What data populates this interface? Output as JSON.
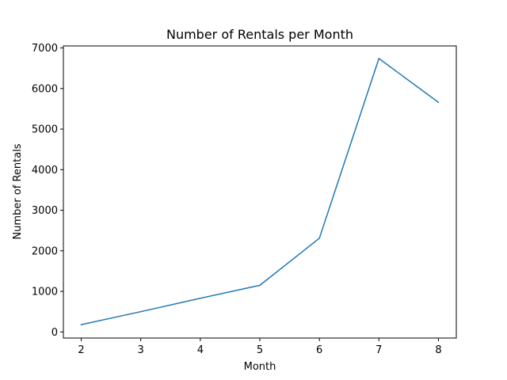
{
  "chart_data": {
    "type": "line",
    "title": "Number of Rentals per Month",
    "xlabel": "Month",
    "ylabel": "Number of Rentals",
    "x": [
      2,
      3,
      4,
      5,
      6,
      7,
      8
    ],
    "series": [
      {
        "values": [
          180,
          500,
          830,
          1150,
          2310,
          6740,
          5660
        ],
        "color": "#1f77b4"
      }
    ],
    "xlim": [
      1.7,
      8.3
    ],
    "ylim": [
      -150,
      7050
    ],
    "xticks": [
      2,
      3,
      4,
      5,
      6,
      7,
      8
    ],
    "yticks": [
      0,
      1000,
      2000,
      3000,
      4000,
      5000,
      6000,
      7000
    ],
    "grid": false,
    "legend": "none"
  }
}
